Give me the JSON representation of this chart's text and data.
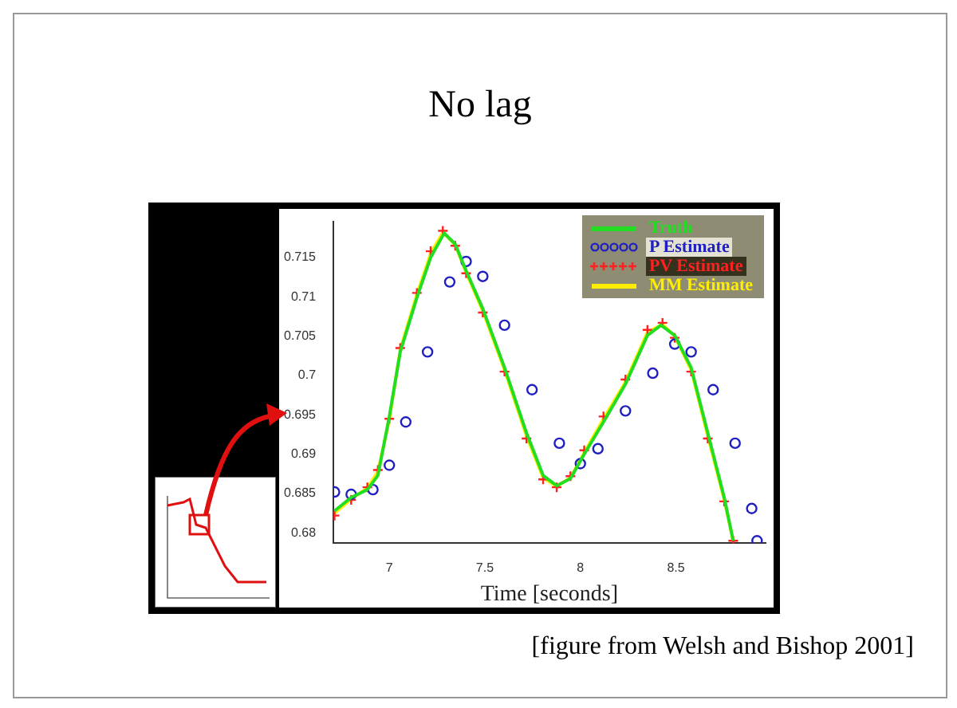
{
  "chart_data": {
    "type": "line",
    "title": "No lag",
    "xlabel": "Time [seconds]",
    "annotations": [
      "[figure from Welsh and Bishop 2001]"
    ],
    "xlim": [
      6.707,
      8.968
    ],
    "xticks": [
      7,
      7.5,
      8,
      8.5
    ],
    "ylim": [
      0.6787,
      0.7196
    ],
    "yticks": [
      0.68,
      0.685,
      0.69,
      0.695,
      0.7,
      0.705,
      0.71,
      0.715
    ],
    "grid": false,
    "legend": "top right",
    "series": [
      {
        "name": "Truth",
        "type": "line",
        "marker": "none",
        "line_style": "solid",
        "color": "#22dd22",
        "x": [
          6.713,
          6.8,
          6.885,
          6.94,
          7.0,
          7.057,
          7.144,
          7.216,
          7.287,
          7.345,
          7.402,
          7.489,
          7.603,
          7.718,
          7.805,
          7.876,
          7.948,
          8.02,
          8.121,
          8.236,
          8.351,
          8.422,
          8.494,
          8.58,
          8.667,
          8.753,
          8.8
        ],
        "values": [
          0.6828,
          0.6845,
          0.6855,
          0.6873,
          0.6948,
          0.703,
          0.7099,
          0.715,
          0.7181,
          0.7167,
          0.7133,
          0.7085,
          0.701,
          0.6927,
          0.6873,
          0.686,
          0.6869,
          0.69,
          0.6941,
          0.6989,
          0.7051,
          0.7064,
          0.7051,
          0.701,
          0.6927,
          0.6845,
          0.679
        ]
      },
      {
        "name": "P Estimate",
        "type": "scatter",
        "marker": "circle",
        "color": "#2020c0",
        "x": [
          6.713,
          6.8,
          6.914,
          7.0,
          7.086,
          7.2,
          7.316,
          7.402,
          7.489,
          7.603,
          7.747,
          7.89,
          8.0,
          8.092,
          8.236,
          8.379,
          8.494,
          8.58,
          8.695,
          8.81,
          8.897,
          8.925
        ],
        "values": [
          0.6852,
          0.6849,
          0.6855,
          0.6886,
          0.6941,
          0.703,
          0.7119,
          0.7145,
          0.7126,
          0.7064,
          0.6982,
          0.6914,
          0.6888,
          0.6907,
          0.6955,
          0.7003,
          0.704,
          0.703,
          0.6982,
          0.6914,
          0.6831,
          0.679
        ]
      },
      {
        "name": "PV Estimate",
        "type": "scatter",
        "marker": "cross",
        "color": "#ff2020",
        "x": [
          6.713,
          6.8,
          6.885,
          6.94,
          7.0,
          7.057,
          7.144,
          7.216,
          7.28,
          7.345,
          7.402,
          7.489,
          7.603,
          7.718,
          7.805,
          7.876,
          7.948,
          8.02,
          8.121,
          8.236,
          8.351,
          8.43,
          8.494,
          8.58,
          8.667,
          8.753,
          8.8
        ],
        "values": [
          0.6822,
          0.6842,
          0.6858,
          0.688,
          0.6945,
          0.7035,
          0.7105,
          0.7158,
          0.7184,
          0.7165,
          0.713,
          0.708,
          0.7005,
          0.692,
          0.6868,
          0.6858,
          0.6872,
          0.6905,
          0.6948,
          0.6995,
          0.7058,
          0.7067,
          0.7048,
          0.7005,
          0.692,
          0.684,
          0.679
        ]
      },
      {
        "name": "MM Estimate",
        "type": "line",
        "marker": "none",
        "line_style": "solid",
        "color": "#ffee00",
        "x": [
          6.713,
          6.8,
          6.885,
          6.94,
          7.0,
          7.057,
          7.144,
          7.216,
          7.28,
          7.345,
          7.402,
          7.489,
          7.603,
          7.718,
          7.805,
          7.876,
          7.948,
          8.02,
          8.121,
          8.236,
          8.351,
          8.43,
          8.494,
          8.58,
          8.667,
          8.753,
          8.8
        ],
        "values": [
          0.6825,
          0.6843,
          0.6857,
          0.6878,
          0.6944,
          0.7033,
          0.7103,
          0.7155,
          0.7182,
          0.7166,
          0.7131,
          0.7082,
          0.7007,
          0.6923,
          0.687,
          0.6859,
          0.687,
          0.6902,
          0.6945,
          0.6992,
          0.7055,
          0.7065,
          0.705,
          0.7007,
          0.6923,
          0.6842,
          0.679
        ]
      }
    ]
  }
}
